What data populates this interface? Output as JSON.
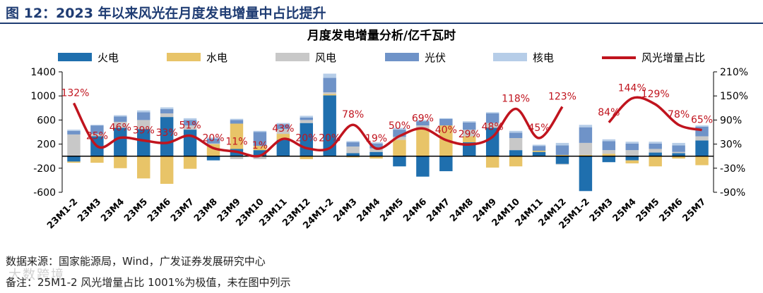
{
  "figure": {
    "title": "图 12：2023 年以来风光在月度发电增量中占比提升",
    "source": "数据来源：国家能源局，Wind，广发证券发展研究中心",
    "note": "备注：25M1-2 风光增量占比 1001%为极值，未在图中列示",
    "watermark": "大数跨境"
  },
  "chart_data": {
    "type": "bar",
    "stacked": true,
    "title": "月度发电增量分析/亿千瓦时",
    "categories": [
      "23M1-2",
      "23M3",
      "23M4",
      "23M5",
      "23M6",
      "23M7",
      "23M8",
      "23M9",
      "23M10",
      "23M11",
      "23M12",
      "24M1-2",
      "24M3",
      "24M4",
      "24M5",
      "24M6",
      "24M7",
      "24M8",
      "24M9",
      "24M10",
      "24M11",
      "24M12",
      "25M1-2",
      "25M3",
      "25M4",
      "25M5",
      "25M6",
      "25M7"
    ],
    "ylim": [
      -600,
      1400
    ],
    "yticks": [
      -600,
      -200,
      200,
      600,
      1000,
      1400
    ],
    "ytick_labels": [
      "-600",
      "-200",
      "200",
      "600",
      "1000",
      "1400"
    ],
    "y2lim": [
      -90,
      210
    ],
    "y2ticks": [
      -90,
      -30,
      30,
      90,
      150,
      210
    ],
    "y2tick_labels": [
      "-90%",
      "-30%",
      "30%",
      "90%",
      "150%",
      "210%"
    ],
    "series": [
      {
        "name": "火电",
        "color": "#1f6fae",
        "values": [
          -90,
          330,
          470,
          450,
          650,
          440,
          -70,
          120,
          100,
          270,
          550,
          1010,
          50,
          70,
          -170,
          -340,
          -250,
          230,
          470,
          100,
          70,
          -130,
          -580,
          -100,
          -70,
          60,
          50,
          260
        ]
      },
      {
        "name": "水电",
        "color": "#e8c468",
        "values": [
          -20,
          -110,
          -200,
          -370,
          -460,
          -210,
          200,
          420,
          70,
          100,
          -50,
          20,
          -20,
          -40,
          270,
          460,
          510,
          100,
          -190,
          -170,
          20,
          20,
          20,
          40,
          -50,
          -170,
          -40,
          -150
        ]
      },
      {
        "name": "风电",
        "color": "#c8c8c8",
        "values": [
          360,
          40,
          100,
          150,
          60,
          70,
          10,
          -50,
          -50,
          80,
          50,
          30,
          110,
          60,
          50,
          50,
          0,
          110,
          80,
          200,
          -10,
          -10,
          200,
          60,
          100,
          60,
          20,
          70
        ]
      },
      {
        "name": "光伏",
        "color": "#6f93c8",
        "values": [
          60,
          140,
          90,
          130,
          70,
          90,
          80,
          60,
          230,
          80,
          40,
          240,
          70,
          80,
          120,
          70,
          110,
          120,
          160,
          90,
          80,
          160,
          260,
          150,
          110,
          90,
          110,
          160
        ]
      },
      {
        "name": "核电",
        "color": "#b6cde8",
        "values": [
          20,
          10,
          20,
          30,
          30,
          30,
          20,
          20,
          20,
          20,
          30,
          70,
          20,
          20,
          30,
          20,
          10,
          20,
          20,
          30,
          20,
          40,
          40,
          30,
          30,
          30,
          40,
          20
        ]
      }
    ],
    "line": {
      "name": "风光增量占比",
      "color": "#c0141e",
      "values": [
        132,
        25,
        46,
        39,
        33,
        51,
        20,
        11,
        1,
        43,
        20,
        20,
        78,
        19,
        50,
        69,
        40,
        29,
        48,
        118,
        45,
        123,
        null,
        84,
        144,
        129,
        78,
        65
      ],
      "labels": [
        "132%",
        "25%",
        "46%",
        "39%",
        "33%",
        "51%",
        "20%",
        "11%",
        "1%",
        "43%",
        "20%",
        "20%",
        "78%",
        "19%",
        "50%",
        "69%",
        "40%",
        "29%",
        "48%",
        "118%",
        "45%",
        "123%",
        "",
        "84%",
        "144%",
        "129%",
        "78%",
        "65%"
      ]
    },
    "legend_position": "top"
  }
}
